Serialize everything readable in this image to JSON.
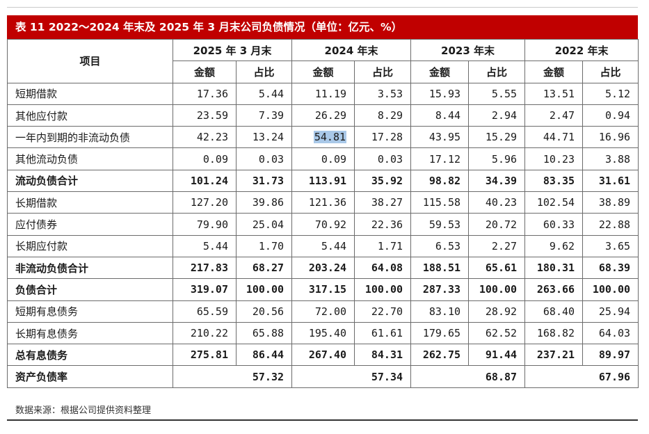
{
  "title": "表 11    2022～2024 年末及 2025 年 3 月末公司负债情况（单位：亿元、%）",
  "header": {
    "item": "项目",
    "periods": [
      "2025 年 3 月末",
      "2024 年末",
      "2023 年末",
      "2022 年末"
    ],
    "amount": "金额",
    "ratio": "占比"
  },
  "rows": [
    {
      "label": "短期借款",
      "bold": false,
      "values": [
        "17.36",
        "5.44",
        "11.19",
        "3.53",
        "15.93",
        "5.55",
        "13.51",
        "5.12"
      ]
    },
    {
      "label": "其他应付款",
      "bold": false,
      "values": [
        "23.59",
        "7.39",
        "26.29",
        "8.29",
        "8.44",
        "2.94",
        "2.47",
        "0.94"
      ]
    },
    {
      "label": "一年内到期的非流动负债",
      "bold": false,
      "values": [
        "42.23",
        "13.24",
        "54.81",
        "17.28",
        "43.95",
        "15.29",
        "44.71",
        "16.96"
      ]
    },
    {
      "label": "其他流动负债",
      "bold": false,
      "values": [
        "0.09",
        "0.03",
        "0.09",
        "0.03",
        "17.12",
        "5.96",
        "10.23",
        "3.88"
      ]
    },
    {
      "label": "流动负债合计",
      "bold": true,
      "values": [
        "101.24",
        "31.73",
        "113.91",
        "35.92",
        "98.82",
        "34.39",
        "83.35",
        "31.61"
      ]
    },
    {
      "label": "长期借款",
      "bold": false,
      "values": [
        "127.20",
        "39.86",
        "121.36",
        "38.27",
        "115.58",
        "40.23",
        "102.54",
        "38.89"
      ]
    },
    {
      "label": "应付债券",
      "bold": false,
      "values": [
        "79.90",
        "25.04",
        "70.92",
        "22.36",
        "59.53",
        "20.72",
        "60.33",
        "22.88"
      ]
    },
    {
      "label": "长期应付款",
      "bold": false,
      "values": [
        "5.44",
        "1.70",
        "5.44",
        "1.71",
        "6.53",
        "2.27",
        "9.62",
        "3.65"
      ]
    },
    {
      "label": "非流动负债合计",
      "bold": true,
      "values": [
        "217.83",
        "68.27",
        "203.24",
        "64.08",
        "188.51",
        "65.61",
        "180.31",
        "68.39"
      ]
    },
    {
      "label": "负债合计",
      "bold": true,
      "values": [
        "319.07",
        "100.00",
        "317.15",
        "100.00",
        "287.33",
        "100.00",
        "263.66",
        "100.00"
      ]
    },
    {
      "label": "短期有息债务",
      "bold": false,
      "values": [
        "65.59",
        "20.56",
        "72.00",
        "22.70",
        "83.10",
        "28.92",
        "68.40",
        "25.94"
      ]
    },
    {
      "label": "长期有息债务",
      "bold": false,
      "values": [
        "210.22",
        "65.88",
        "195.40",
        "61.61",
        "179.65",
        "62.52",
        "168.82",
        "64.03"
      ]
    },
    {
      "label": "总有息债务",
      "bold": true,
      "values": [
        "275.81",
        "86.44",
        "267.40",
        "84.31",
        "262.75",
        "91.44",
        "237.21",
        "89.97"
      ]
    }
  ],
  "leverage": {
    "label": "资产负债率",
    "values": [
      "57.32",
      "57.34",
      "68.87",
      "67.96"
    ]
  },
  "source": "数据来源：根据公司提供资料整理",
  "highlight_color": "#a9c8e8",
  "title_bar_color": "#c00000"
}
